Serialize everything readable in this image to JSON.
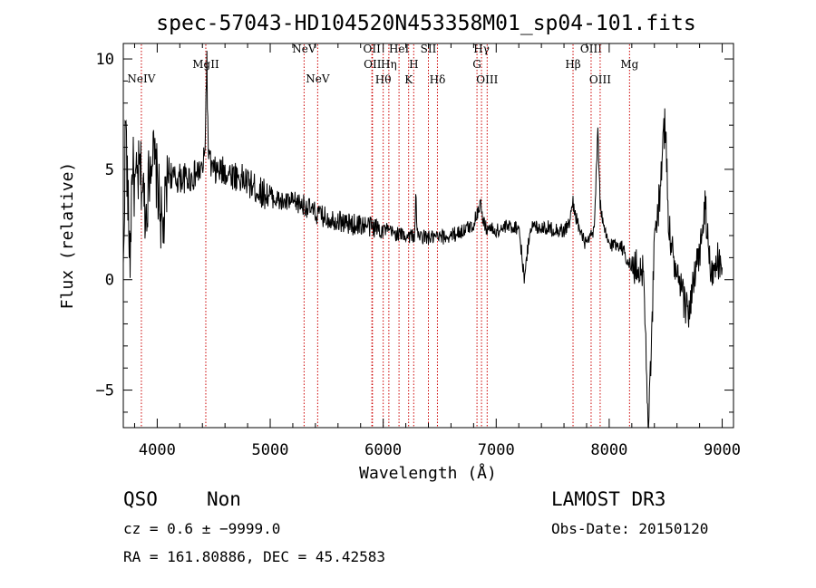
{
  "chart_data": {
    "type": "line",
    "title": "spec-57043-HD104520N453358M01_sp04-101.fits",
    "xlabel": "Wavelength (Å)",
    "ylabel": "Flux (relative)",
    "xlim": [
      3700,
      9100
    ],
    "ylim": [
      -6.7,
      10.7
    ],
    "x_ticks": [
      4000,
      5000,
      6000,
      7000,
      8000,
      9000
    ],
    "x_tick_labels": [
      "4000",
      "5000",
      "6000",
      "7000",
      "8000",
      "9000"
    ],
    "y_ticks": [
      -5,
      0,
      5,
      10
    ],
    "y_tick_labels": [
      "−5",
      "0",
      "5",
      "10"
    ],
    "grid": false,
    "line_color": "#000000",
    "marker_color": "#cc0000",
    "spectrum_anchors": {
      "x": [
        3700,
        3720,
        3740,
        3760,
        3780,
        3800,
        3850,
        3900,
        3950,
        4000,
        4050,
        4100,
        4150,
        4200,
        4300,
        4400,
        4420,
        4440,
        4450,
        4470,
        4500,
        4600,
        4700,
        4800,
        4900,
        5000,
        5100,
        5200,
        5300,
        5400,
        5500,
        5600,
        5700,
        5800,
        5900,
        6000,
        6100,
        6200,
        6280,
        6290,
        6300,
        6400,
        6500,
        6600,
        6700,
        6800,
        6860,
        6870,
        6880,
        6900,
        7000,
        7100,
        7200,
        7250,
        7300,
        7400,
        7500,
        7600,
        7650,
        7680,
        7700,
        7750,
        7800,
        7850,
        7870,
        7900,
        7920,
        7950,
        8000,
        8100,
        8200,
        8300,
        8350,
        8400,
        8450,
        8480,
        8500,
        8520,
        8550,
        8600,
        8700,
        8800,
        8850,
        8900,
        8950,
        9000
      ],
      "y": [
        0,
        7.5,
        3.5,
        1.0,
        5.5,
        4.0,
        5.0,
        3.0,
        6.0,
        4.5,
        2.0,
        5.0,
        4.5,
        4.6,
        4.6,
        5.0,
        5.5,
        10.0,
        6.0,
        5.2,
        4.9,
        4.9,
        4.7,
        4.4,
        4.0,
        3.8,
        3.5,
        3.5,
        3.4,
        3.0,
        2.8,
        2.7,
        2.5,
        2.5,
        2.4,
        2.3,
        2.1,
        2.0,
        2.0,
        4.3,
        2.0,
        1.9,
        1.9,
        2.0,
        2.2,
        2.5,
        3.5,
        3.2,
        2.8,
        2.4,
        2.2,
        2.4,
        2.4,
        0.0,
        2.4,
        2.4,
        2.3,
        2.2,
        2.6,
        3.5,
        3.0,
        2.0,
        1.6,
        2.0,
        2.5,
        6.9,
        3.5,
        2.3,
        1.6,
        1.6,
        0.5,
        0.5,
        -6.7,
        1.5,
        4.0,
        6.5,
        7.2,
        3.0,
        1.5,
        0.0,
        -1.5,
        1.2,
        3.3,
        0.0,
        1.0,
        0.0
      ]
    },
    "lines": [
      {
        "label": "NeIV",
        "x": 3860
      },
      {
        "label": "MgII",
        "x": 4430
      },
      {
        "label": "NeV",
        "x": 5300
      },
      {
        "label": "NeV",
        "x": 5420
      },
      {
        "label": "OII",
        "x": 5900
      },
      {
        "label": "OII",
        "x": 5905
      },
      {
        "label": "Hθ",
        "x": 6000
      },
      {
        "label": "Hη",
        "x": 6050
      },
      {
        "label": "HeI",
        "x": 6140
      },
      {
        "label": "K",
        "x": 6225
      },
      {
        "label": "H",
        "x": 6270
      },
      {
        "label": "SII",
        "x": 6400
      },
      {
        "label": "Hδ",
        "x": 6480
      },
      {
        "label": "G",
        "x": 6830
      },
      {
        "label": "Hγ",
        "x": 6870
      },
      {
        "label": "OIII",
        "x": 6920
      },
      {
        "label": "Hβ",
        "x": 7680
      },
      {
        "label": "OIII",
        "x": 7840
      },
      {
        "label": "OIII",
        "x": 7920
      },
      {
        "label": "Mg",
        "x": 8180
      }
    ]
  },
  "footer": {
    "class_label": "QSO",
    "subclass_label": "Non",
    "survey": "LAMOST DR3",
    "cz_line": "cz = 0.6 ± −9999.0",
    "obs_date": "Obs-Date: 20150120",
    "coords": "RA = 161.80886, DEC =  45.42583"
  }
}
